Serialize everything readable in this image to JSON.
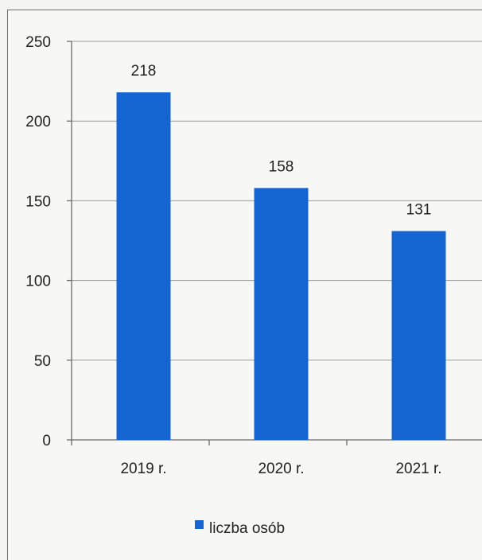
{
  "chart_data": {
    "type": "bar",
    "categories": [
      "2019 r.",
      "2020 r.",
      "2021 r."
    ],
    "series": [
      {
        "name": "liczba osób",
        "values": [
          218,
          158,
          131
        ],
        "color": "#1464d2"
      }
    ],
    "data_labels": [
      "218",
      "158",
      "131"
    ],
    "ylim": [
      0,
      250
    ],
    "yticks": [
      0,
      50,
      100,
      150,
      200,
      250
    ],
    "ytick_labels": [
      "0",
      "50",
      "100",
      "150",
      "200",
      "250"
    ],
    "grid": true,
    "legend_position": "bottom"
  }
}
